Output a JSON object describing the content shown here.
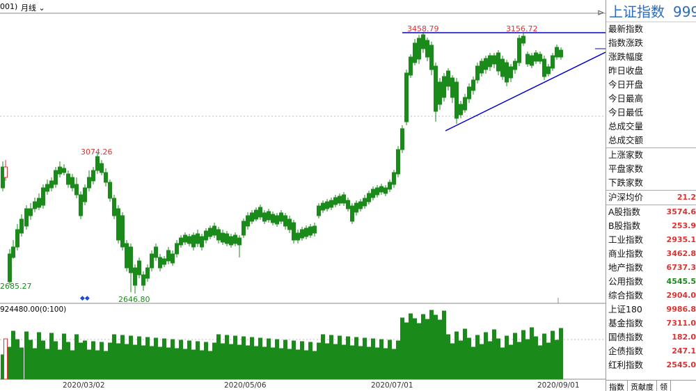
{
  "header": {
    "code_fragment": "001)",
    "period_label": "月线"
  },
  "chart_data": {
    "type": "candlestick",
    "price_labels": {
      "high_left": "3074.26",
      "low_left": "2646.80",
      "left_edge": "2685.27",
      "high_mid": "3458.79",
      "high_right": "3156.72"
    },
    "volume_label": "924480.00(0:100)",
    "x_labels": [
      "2020/03/02",
      "2020/05/06",
      "2020/07/01",
      "2020/09/01"
    ]
  },
  "panel": {
    "title": "上证指数",
    "code": "999",
    "rows_a": [
      "最新指数",
      "指数涨跌",
      "涨跌幅度",
      "昨日收盘",
      "今日开盘",
      "今日最高",
      "今日最低",
      "总成交量",
      "总成交额"
    ],
    "rows_b": [
      "上涨家数",
      "平盘家数",
      "下跌家数"
    ],
    "avg_label": "沪深均价",
    "avg_value": "21.2",
    "indices": [
      {
        "label": "A股指数",
        "value": "3574.6",
        "color": "red"
      },
      {
        "label": "B股指数",
        "value": "253.9",
        "color": "red"
      },
      {
        "label": "工业指数",
        "value": "2935.1",
        "color": "red"
      },
      {
        "label": "商业指数",
        "value": "3462.8",
        "color": "red"
      },
      {
        "label": "地产指数",
        "value": "6737.3",
        "color": "red"
      },
      {
        "label": "公用指数",
        "value": "4545.5",
        "color": "green"
      },
      {
        "label": "综合指数",
        "value": "2904.0",
        "color": "red"
      },
      {
        "label": "上证180",
        "value": "9986.8",
        "color": "red"
      },
      {
        "label": "基金指数",
        "value": "7311.0",
        "color": "red"
      },
      {
        "label": "国债指数",
        "value": "182.0",
        "color": "red"
      },
      {
        "label": "企债指数",
        "value": "247.1",
        "color": "red"
      },
      {
        "label": "红利指数",
        "value": "2545.0",
        "color": "red"
      }
    ],
    "tabs": [
      "指数",
      "贡献度",
      "领"
    ]
  },
  "colors": {
    "up": "#e03030",
    "down": "#1a8a1a",
    "line": "#0000cc",
    "title": "#2a6bc0"
  }
}
